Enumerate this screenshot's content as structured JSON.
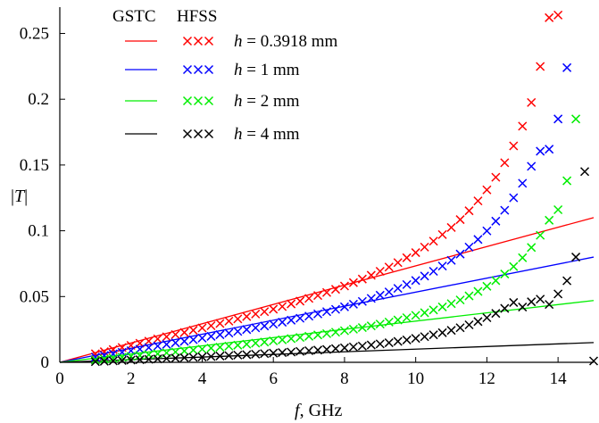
{
  "chart_data": {
    "type": "line",
    "xlabel": "f, GHz",
    "xlabel_italic": "f",
    "xlabel_rest": ", GHz",
    "ylabel": "|T|",
    "ylabel_pre": "|",
    "ylabel_italic": "T",
    "ylabel_post": "|",
    "xlim": [
      0,
      15
    ],
    "ylim": [
      0,
      0.27
    ],
    "xticks": [
      0,
      2,
      4,
      6,
      8,
      10,
      12,
      14
    ],
    "xtick_labels": [
      "0",
      "2",
      "4",
      "6",
      "8",
      "10",
      "12",
      "14"
    ],
    "yticks": [
      0,
      0.05,
      0.1,
      0.15,
      0.2,
      0.25
    ],
    "ytick_labels": [
      "0",
      "0.05",
      "0.1",
      "0.15",
      "0.2",
      "0.25"
    ],
    "grid": false,
    "legend": {
      "placement": "top-left",
      "header_line": "GSTC",
      "header_marker": "HFSS"
    },
    "series": [
      {
        "name": "h = 0.3918 mm",
        "label_var": "h",
        "label_rest": " = 0.3918 mm",
        "color": "#ff0000",
        "gstc": {
          "x": [
            0,
            15
          ],
          "y": [
            0,
            0.11
          ]
        },
        "hfss": {
          "x": [
            1.0,
            1.25,
            1.5,
            1.75,
            2.0,
            2.25,
            2.5,
            2.75,
            3.0,
            3.25,
            3.5,
            3.75,
            4.0,
            4.25,
            4.5,
            4.75,
            5.0,
            5.25,
            5.5,
            5.75,
            6.0,
            6.25,
            6.5,
            6.75,
            7.0,
            7.25,
            7.5,
            7.75,
            8.0,
            8.25,
            8.5,
            8.75,
            9.0,
            9.25,
            9.5,
            9.75,
            10.0,
            10.25,
            10.5,
            10.75,
            11.0,
            11.25,
            11.5,
            11.75,
            12.0,
            12.25,
            12.5,
            12.75,
            13.0,
            13.25,
            13.5,
            13.75,
            14.0
          ],
          "y": [
            0.0065,
            0.0081,
            0.0097,
            0.0113,
            0.0129,
            0.0145,
            0.0161,
            0.0178,
            0.0194,
            0.0211,
            0.0227,
            0.0244,
            0.0261,
            0.0278,
            0.0295,
            0.0313,
            0.033,
            0.0348,
            0.0367,
            0.0385,
            0.0404,
            0.0424,
            0.0444,
            0.0465,
            0.0486,
            0.0508,
            0.0531,
            0.0555,
            0.058,
            0.0606,
            0.0633,
            0.0662,
            0.0692,
            0.0724,
            0.0758,
            0.0795,
            0.0834,
            0.0876,
            0.0921,
            0.0971,
            0.1025,
            0.1085,
            0.1152,
            0.1227,
            0.1311,
            0.1407,
            0.1517,
            0.1645,
            0.1795,
            0.1975,
            0.2249,
            0.262,
            0.264
          ]
        }
      },
      {
        "name": "h = 1 mm",
        "label_var": "h",
        "label_rest": " = 1 mm",
        "color": "#0000ff",
        "gstc": {
          "x": [
            0,
            15
          ],
          "y": [
            0,
            0.08
          ]
        },
        "hfss": {
          "x": [
            1.0,
            1.25,
            1.5,
            1.75,
            2.0,
            2.25,
            2.5,
            2.75,
            3.0,
            3.25,
            3.5,
            3.75,
            4.0,
            4.25,
            4.5,
            4.75,
            5.0,
            5.25,
            5.5,
            5.75,
            6.0,
            6.25,
            6.5,
            6.75,
            7.0,
            7.25,
            7.5,
            7.75,
            8.0,
            8.25,
            8.5,
            8.75,
            9.0,
            9.25,
            9.5,
            9.75,
            10.0,
            10.25,
            10.5,
            10.75,
            11.0,
            11.25,
            11.5,
            11.75,
            12.0,
            12.25,
            12.5,
            12.75,
            13.0,
            13.25,
            13.5,
            13.75,
            14.0,
            14.25
          ],
          "y": [
            0.004,
            0.0052,
            0.0064,
            0.0076,
            0.0088,
            0.01,
            0.0112,
            0.0124,
            0.0136,
            0.0148,
            0.016,
            0.0172,
            0.0184,
            0.0197,
            0.021,
            0.0222,
            0.0235,
            0.0249,
            0.0262,
            0.0276,
            0.029,
            0.0305,
            0.032,
            0.0335,
            0.0351,
            0.0368,
            0.0385,
            0.0403,
            0.0422,
            0.0442,
            0.0463,
            0.0486,
            0.051,
            0.0535,
            0.0562,
            0.0591,
            0.0622,
            0.0656,
            0.0692,
            0.0732,
            0.0775,
            0.0823,
            0.0876,
            0.0934,
            0.0999,
            0.1073,
            0.1156,
            0.1251,
            0.1361,
            0.149,
            0.1605,
            0.162,
            0.185,
            0.224
          ]
        }
      },
      {
        "name": "h = 2 mm",
        "label_var": "h",
        "label_rest": " = 2 mm",
        "color": "#00ee00",
        "gstc": {
          "x": [
            0,
            15
          ],
          "y": [
            0,
            0.047
          ]
        },
        "hfss": {
          "x": [
            1.0,
            1.25,
            1.5,
            1.75,
            2.0,
            2.25,
            2.5,
            2.75,
            3.0,
            3.25,
            3.5,
            3.75,
            4.0,
            4.25,
            4.5,
            4.75,
            5.0,
            5.25,
            5.5,
            5.75,
            6.0,
            6.25,
            6.5,
            6.75,
            7.0,
            7.25,
            7.5,
            7.75,
            8.0,
            8.25,
            8.5,
            8.75,
            9.0,
            9.25,
            9.5,
            9.75,
            10.0,
            10.25,
            10.5,
            10.75,
            11.0,
            11.25,
            11.5,
            11.75,
            12.0,
            12.25,
            12.5,
            12.75,
            13.0,
            13.25,
            13.5,
            13.75,
            14.0,
            14.25,
            14.5
          ],
          "y": [
            0.0018,
            0.0025,
            0.0031,
            0.0038,
            0.0045,
            0.0052,
            0.0058,
            0.0065,
            0.0072,
            0.0079,
            0.0086,
            0.0093,
            0.01,
            0.0108,
            0.0115,
            0.0123,
            0.013,
            0.0138,
            0.0146,
            0.0154,
            0.0163,
            0.0171,
            0.018,
            0.0189,
            0.0198,
            0.0208,
            0.0218,
            0.0229,
            0.024,
            0.0252,
            0.0264,
            0.0277,
            0.0291,
            0.0306,
            0.0322,
            0.0339,
            0.0357,
            0.0377,
            0.0398,
            0.0421,
            0.0446,
            0.0474,
            0.0505,
            0.0539,
            0.0578,
            0.0621,
            0.0671,
            0.0728,
            0.0795,
            0.0873,
            0.0966,
            0.108,
            0.116,
            0.138,
            0.185
          ]
        }
      },
      {
        "name": "h = 4 mm",
        "label_var": "h",
        "label_rest": " = 4 mm",
        "color": "#000000",
        "gstc": {
          "x": [
            0,
            15
          ],
          "y": [
            0,
            0.015
          ]
        },
        "hfss": {
          "x": [
            1.0,
            1.25,
            1.5,
            1.75,
            2.0,
            2.25,
            2.5,
            2.75,
            3.0,
            3.25,
            3.5,
            3.75,
            4.0,
            4.25,
            4.5,
            4.75,
            5.0,
            5.25,
            5.5,
            5.75,
            6.0,
            6.25,
            6.5,
            6.75,
            7.0,
            7.25,
            7.5,
            7.75,
            8.0,
            8.25,
            8.5,
            8.75,
            9.0,
            9.25,
            9.5,
            9.75,
            10.0,
            10.25,
            10.5,
            10.75,
            11.0,
            11.25,
            11.5,
            11.75,
            12.0,
            12.25,
            12.5,
            12.75,
            13.0,
            13.25,
            13.5,
            13.75,
            14.0,
            14.25,
            14.5,
            14.75,
            15.0
          ],
          "y": [
            0.0005,
            0.0008,
            0.0011,
            0.0014,
            0.0017,
            0.002,
            0.0023,
            0.0026,
            0.0029,
            0.0032,
            0.0035,
            0.0038,
            0.0041,
            0.0044,
            0.0048,
            0.0051,
            0.0055,
            0.0058,
            0.0062,
            0.0066,
            0.007,
            0.0074,
            0.0078,
            0.0083,
            0.0088,
            0.0093,
            0.0098,
            0.0104,
            0.011,
            0.0117,
            0.0124,
            0.0132,
            0.014,
            0.0149,
            0.0159,
            0.017,
            0.0182,
            0.0195,
            0.0209,
            0.0225,
            0.0243,
            0.0263,
            0.0285,
            0.031,
            0.0339,
            0.0372,
            0.041,
            0.0455,
            0.042,
            0.046,
            0.048,
            0.044,
            0.052,
            0.062,
            0.08,
            0.145,
            0.001
          ]
        }
      }
    ]
  }
}
